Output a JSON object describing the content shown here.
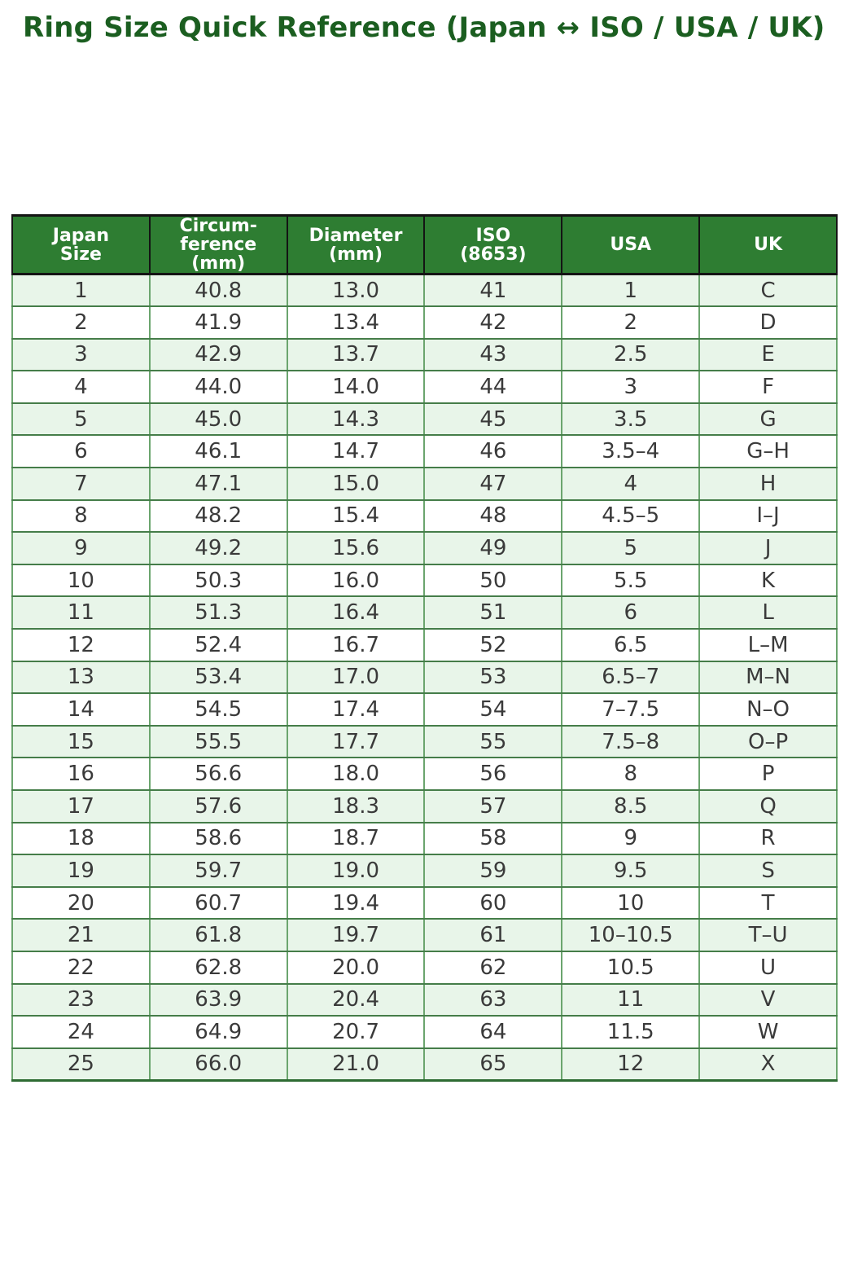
{
  "title": "Ring Size Quick Reference (Japan ↔ ISO / USA / UK)",
  "colors": {
    "title_color": "#1b5e20",
    "header_bg": "#2e7d32",
    "header_text": "#ffffff",
    "header_border": "#141414",
    "row_bg": "#ffffff",
    "row_alt_bg": "#e8f5e9",
    "body_text": "#3a3a3a",
    "grid_vertical": "#6ba56e",
    "grid_horizontal": "#457d49",
    "table_bottom_border": "#2e6b33"
  },
  "chart_data": {
    "type": "table",
    "title": "Ring Size Quick Reference (Japan ↔ ISO / USA / UK)",
    "columns": [
      "Japan\nSize",
      "Circum-\nference\n(mm)",
      "Diameter\n(mm)",
      "ISO\n(8653)",
      "USA",
      "UK"
    ],
    "rows": [
      [
        "1",
        "40.8",
        "13.0",
        "41",
        "1",
        "C"
      ],
      [
        "2",
        "41.9",
        "13.4",
        "42",
        "2",
        "D"
      ],
      [
        "3",
        "42.9",
        "13.7",
        "43",
        "2.5",
        "E"
      ],
      [
        "4",
        "44.0",
        "14.0",
        "44",
        "3",
        "F"
      ],
      [
        "5",
        "45.0",
        "14.3",
        "45",
        "3.5",
        "G"
      ],
      [
        "6",
        "46.1",
        "14.7",
        "46",
        "3.5–4",
        "G–H"
      ],
      [
        "7",
        "47.1",
        "15.0",
        "47",
        "4",
        "H"
      ],
      [
        "8",
        "48.2",
        "15.4",
        "48",
        "4.5–5",
        "I–J"
      ],
      [
        "9",
        "49.2",
        "15.6",
        "49",
        "5",
        "J"
      ],
      [
        "10",
        "50.3",
        "16.0",
        "50",
        "5.5",
        "K"
      ],
      [
        "11",
        "51.3",
        "16.4",
        "51",
        "6",
        "L"
      ],
      [
        "12",
        "52.4",
        "16.7",
        "52",
        "6.5",
        "L–M"
      ],
      [
        "13",
        "53.4",
        "17.0",
        "53",
        "6.5–7",
        "M–N"
      ],
      [
        "14",
        "54.5",
        "17.4",
        "54",
        "7–7.5",
        "N–O"
      ],
      [
        "15",
        "55.5",
        "17.7",
        "55",
        "7.5–8",
        "O–P"
      ],
      [
        "16",
        "56.6",
        "18.0",
        "56",
        "8",
        "P"
      ],
      [
        "17",
        "57.6",
        "18.3",
        "57",
        "8.5",
        "Q"
      ],
      [
        "18",
        "58.6",
        "18.7",
        "58",
        "9",
        "R"
      ],
      [
        "19",
        "59.7",
        "19.0",
        "59",
        "9.5",
        "S"
      ],
      [
        "20",
        "60.7",
        "19.4",
        "60",
        "10",
        "T"
      ],
      [
        "21",
        "61.8",
        "19.7",
        "61",
        "10–10.5",
        "T–U"
      ],
      [
        "22",
        "62.8",
        "20.0",
        "62",
        "10.5",
        "U"
      ],
      [
        "23",
        "63.9",
        "20.4",
        "63",
        "11",
        "V"
      ],
      [
        "24",
        "64.9",
        "20.7",
        "64",
        "11.5",
        "W"
      ],
      [
        "25",
        "66.0",
        "21.0",
        "65",
        "12",
        "X"
      ]
    ]
  }
}
